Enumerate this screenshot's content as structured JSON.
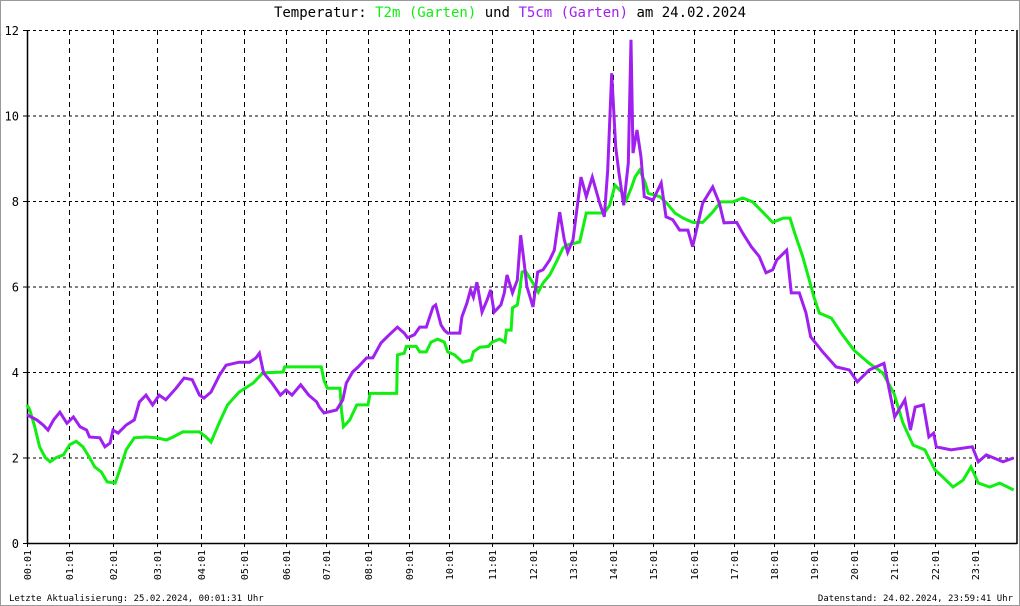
{
  "title": {
    "prefix": "Temperatur:",
    "series1": "T2m (Garten)",
    "middle": "und",
    "series2": "T5cm (Garten)",
    "suffix": "am 24.02.2024"
  },
  "footer": {
    "last_update": "Letzte Aktualisierung: 25.02.2024, 00:01:31 Uhr",
    "data_state": "Datenstand: 24.02.2024, 23:59:41 Uhr"
  },
  "colors": {
    "T2m": "#11ee11",
    "T5cm": "#a020f0",
    "grid": "#000000"
  },
  "chart_data": {
    "type": "line",
    "title": "Temperatur: T2m (Garten) und T5cm (Garten) am 24.02.2024",
    "xlabel": "",
    "ylabel": "",
    "ylim": [
      0,
      12
    ],
    "yticks": [
      "0",
      "2",
      "4",
      "6",
      "8",
      "10",
      "12"
    ],
    "xticks": [
      "00:01",
      "01:01",
      "02:01",
      "03:01",
      "04:01",
      "05:01",
      "06:01",
      "07:01",
      "08:01",
      "09:01",
      "10:01",
      "11:01",
      "12:01",
      "13:01",
      "14:01",
      "15:01",
      "16:01",
      "17:01",
      "18:01",
      "19:01",
      "20:01",
      "21:01",
      "22:01",
      "23:01"
    ],
    "grid": true,
    "series": [
      {
        "name": "T2m (Garten)",
        "color": "#11ee11",
        "points": [
          [
            "00:01",
            3.23
          ],
          [
            "00:05",
            3.11
          ],
          [
            "00:12",
            2.72
          ],
          [
            "00:19",
            2.25
          ],
          [
            "00:27",
            2.0
          ],
          [
            "00:34",
            1.9
          ],
          [
            "00:43",
            2.0
          ],
          [
            "00:53",
            2.06
          ],
          [
            "01:02",
            2.3
          ],
          [
            "01:11",
            2.38
          ],
          [
            "01:20",
            2.25
          ],
          [
            "01:29",
            2.0
          ],
          [
            "01:36",
            1.78
          ],
          [
            "01:45",
            1.66
          ],
          [
            "01:53",
            1.43
          ],
          [
            "02:04",
            1.4
          ],
          [
            "02:10",
            1.7
          ],
          [
            "02:19",
            2.18
          ],
          [
            "02:30",
            2.46
          ],
          [
            "02:46",
            2.48
          ],
          [
            "03:00",
            2.46
          ],
          [
            "03:14",
            2.41
          ],
          [
            "03:23",
            2.48
          ],
          [
            "03:36",
            2.6
          ],
          [
            "03:59",
            2.6
          ],
          [
            "04:08",
            2.48
          ],
          [
            "04:15",
            2.36
          ],
          [
            "04:27",
            2.83
          ],
          [
            "04:38",
            3.23
          ],
          [
            "04:54",
            3.53
          ],
          [
            "05:14",
            3.74
          ],
          [
            "05:28",
            3.98
          ],
          [
            "05:57",
            4.0
          ],
          [
            "05:59",
            4.12
          ],
          [
            "06:54",
            4.12
          ],
          [
            "06:58",
            3.8
          ],
          [
            "07:03",
            3.62
          ],
          [
            "07:21",
            3.62
          ],
          [
            "07:23",
            3.11
          ],
          [
            "07:26",
            2.72
          ],
          [
            "07:35",
            2.88
          ],
          [
            "07:45",
            3.23
          ],
          [
            "08:01",
            3.23
          ],
          [
            "08:04",
            3.5
          ],
          [
            "08:43",
            3.5
          ],
          [
            "08:44",
            4.4
          ],
          [
            "08:54",
            4.44
          ],
          [
            "08:57",
            4.6
          ],
          [
            "09:12",
            4.6
          ],
          [
            "09:17",
            4.47
          ],
          [
            "09:27",
            4.47
          ],
          [
            "09:34",
            4.7
          ],
          [
            "09:44",
            4.77
          ],
          [
            "09:54",
            4.7
          ],
          [
            "09:59",
            4.47
          ],
          [
            "10:09",
            4.4
          ],
          [
            "10:20",
            4.23
          ],
          [
            "10:32",
            4.28
          ],
          [
            "10:35",
            4.47
          ],
          [
            "10:44",
            4.58
          ],
          [
            "10:56",
            4.6
          ],
          [
            "11:01",
            4.7
          ],
          [
            "11:12",
            4.77
          ],
          [
            "11:20",
            4.7
          ],
          [
            "11:22",
            4.98
          ],
          [
            "11:29",
            4.98
          ],
          [
            "11:31",
            5.5
          ],
          [
            "11:38",
            5.57
          ],
          [
            "11:41",
            5.85
          ],
          [
            "11:45",
            6.34
          ],
          [
            "11:50",
            6.36
          ],
          [
            "12:01",
            6.08
          ],
          [
            "12:09",
            5.87
          ],
          [
            "12:16",
            6.08
          ],
          [
            "12:26",
            6.27
          ],
          [
            "12:36",
            6.57
          ],
          [
            "12:46",
            6.9
          ],
          [
            "12:52",
            6.97
          ],
          [
            "13:11",
            7.04
          ],
          [
            "13:21",
            7.72
          ],
          [
            "13:48",
            7.72
          ],
          [
            "13:56",
            7.9
          ],
          [
            "14:04",
            8.37
          ],
          [
            "14:14",
            8.21
          ],
          [
            "14:21",
            8.02
          ],
          [
            "14:29",
            8.33
          ],
          [
            "14:34",
            8.56
          ],
          [
            "14:41",
            8.72
          ],
          [
            "14:49",
            8.44
          ],
          [
            "14:54",
            8.18
          ],
          [
            "15:11",
            8.1
          ],
          [
            "15:21",
            7.95
          ],
          [
            "15:33",
            7.72
          ],
          [
            "15:45",
            7.6
          ],
          [
            "15:59",
            7.5
          ],
          [
            "16:14",
            7.5
          ],
          [
            "16:29",
            7.74
          ],
          [
            "16:41",
            7.98
          ],
          [
            "16:59",
            7.98
          ],
          [
            "17:14",
            8.07
          ],
          [
            "17:29",
            7.98
          ],
          [
            "17:44",
            7.74
          ],
          [
            "17:59",
            7.5
          ],
          [
            "18:15",
            7.6
          ],
          [
            "18:25",
            7.6
          ],
          [
            "18:32",
            7.25
          ],
          [
            "18:44",
            6.7
          ],
          [
            "18:54",
            6.15
          ],
          [
            "19:01",
            5.75
          ],
          [
            "19:09",
            5.38
          ],
          [
            "19:27",
            5.26
          ],
          [
            "19:42",
            4.91
          ],
          [
            "20:01",
            4.51
          ],
          [
            "20:24",
            4.2
          ],
          [
            "20:44",
            3.98
          ],
          [
            "21:01",
            3.5
          ],
          [
            "21:14",
            2.81
          ],
          [
            "21:29",
            2.29
          ],
          [
            "21:46",
            2.18
          ],
          [
            "22:01",
            1.71
          ],
          [
            "22:13",
            1.54
          ],
          [
            "22:28",
            1.31
          ],
          [
            "22:43",
            1.47
          ],
          [
            "22:55",
            1.78
          ],
          [
            "23:06",
            1.4
          ],
          [
            "23:23",
            1.31
          ],
          [
            "23:38",
            1.4
          ],
          [
            "23:59",
            1.24
          ]
        ]
      },
      {
        "name": "T5cm (Garten)",
        "color": "#a020f0",
        "points": [
          [
            "00:01",
            3.0
          ],
          [
            "00:15",
            2.88
          ],
          [
            "00:24",
            2.76
          ],
          [
            "00:31",
            2.64
          ],
          [
            "00:39",
            2.88
          ],
          [
            "00:48",
            3.06
          ],
          [
            "00:58",
            2.8
          ],
          [
            "01:07",
            2.95
          ],
          [
            "01:16",
            2.72
          ],
          [
            "01:25",
            2.64
          ],
          [
            "01:29",
            2.48
          ],
          [
            "01:43",
            2.46
          ],
          [
            "01:50",
            2.25
          ],
          [
            "01:57",
            2.34
          ],
          [
            "02:01",
            2.64
          ],
          [
            "02:08",
            2.57
          ],
          [
            "02:19",
            2.76
          ],
          [
            "02:30",
            2.88
          ],
          [
            "02:37",
            3.3
          ],
          [
            "02:46",
            3.46
          ],
          [
            "02:55",
            3.23
          ],
          [
            "03:04",
            3.46
          ],
          [
            "03:13",
            3.35
          ],
          [
            "03:27",
            3.62
          ],
          [
            "03:38",
            3.86
          ],
          [
            "03:49",
            3.82
          ],
          [
            "03:59",
            3.46
          ],
          [
            "04:05",
            3.39
          ],
          [
            "04:15",
            3.53
          ],
          [
            "04:27",
            3.93
          ],
          [
            "04:36",
            4.16
          ],
          [
            "04:54",
            4.23
          ],
          [
            "05:09",
            4.23
          ],
          [
            "05:18",
            4.33
          ],
          [
            "05:23",
            4.44
          ],
          [
            "05:29",
            3.98
          ],
          [
            "05:41",
            3.74
          ],
          [
            "05:53",
            3.46
          ],
          [
            "06:01",
            3.58
          ],
          [
            "06:10",
            3.46
          ],
          [
            "06:23",
            3.7
          ],
          [
            "06:35",
            3.46
          ],
          [
            "06:47",
            3.3
          ],
          [
            "06:51",
            3.18
          ],
          [
            "06:58",
            3.04
          ],
          [
            "07:16",
            3.11
          ],
          [
            "07:25",
            3.35
          ],
          [
            "07:30",
            3.74
          ],
          [
            "07:39",
            4.0
          ],
          [
            "07:47",
            4.12
          ],
          [
            "07:59",
            4.33
          ],
          [
            "08:08",
            4.33
          ],
          [
            "08:20",
            4.68
          ],
          [
            "08:32",
            4.87
          ],
          [
            "08:44",
            5.05
          ],
          [
            "08:54",
            4.91
          ],
          [
            "08:59",
            4.8
          ],
          [
            "09:09",
            4.87
          ],
          [
            "09:17",
            5.05
          ],
          [
            "09:27",
            5.05
          ],
          [
            "09:37",
            5.52
          ],
          [
            "09:41",
            5.57
          ],
          [
            "09:49",
            5.1
          ],
          [
            "09:54",
            4.98
          ],
          [
            "09:59",
            4.91
          ],
          [
            "10:16",
            4.91
          ],
          [
            "10:19",
            5.29
          ],
          [
            "10:26",
            5.61
          ],
          [
            "10:31",
            5.92
          ],
          [
            "10:35",
            5.75
          ],
          [
            "10:40",
            6.1
          ],
          [
            "10:47",
            5.4
          ],
          [
            "10:54",
            5.68
          ],
          [
            "10:59",
            5.92
          ],
          [
            "11:04",
            5.4
          ],
          [
            "11:14",
            5.57
          ],
          [
            "11:19",
            5.85
          ],
          [
            "11:23",
            6.27
          ],
          [
            "11:31",
            5.85
          ],
          [
            "11:38",
            6.15
          ],
          [
            "11:43",
            7.2
          ],
          [
            "11:47",
            6.7
          ],
          [
            "11:52",
            6.0
          ],
          [
            "12:01",
            5.52
          ],
          [
            "12:08",
            6.34
          ],
          [
            "12:16",
            6.39
          ],
          [
            "12:26",
            6.62
          ],
          [
            "12:33",
            6.85
          ],
          [
            "12:41",
            7.74
          ],
          [
            "12:48",
            7.09
          ],
          [
            "12:53",
            6.8
          ],
          [
            "13:01",
            7.09
          ],
          [
            "13:13",
            8.56
          ],
          [
            "13:21",
            8.1
          ],
          [
            "13:30",
            8.56
          ],
          [
            "13:41",
            7.95
          ],
          [
            "13:48",
            7.63
          ],
          [
            "13:53",
            8.72
          ],
          [
            "13:59",
            10.99
          ],
          [
            "14:05",
            9.26
          ],
          [
            "14:10",
            8.65
          ],
          [
            "14:17",
            7.9
          ],
          [
            "14:24",
            8.89
          ],
          [
            "14:28",
            11.77
          ],
          [
            "14:31",
            9.12
          ],
          [
            "14:37",
            9.66
          ],
          [
            "14:43",
            9.03
          ],
          [
            "14:48",
            8.1
          ],
          [
            "15:01",
            8.02
          ],
          [
            "15:13",
            8.42
          ],
          [
            "15:20",
            7.63
          ],
          [
            "15:30",
            7.56
          ],
          [
            "15:40",
            7.32
          ],
          [
            "15:52",
            7.32
          ],
          [
            "15:59",
            6.93
          ],
          [
            "16:14",
            7.95
          ],
          [
            "16:29",
            8.33
          ],
          [
            "16:39",
            7.95
          ],
          [
            "16:46",
            7.49
          ],
          [
            "17:05",
            7.5
          ],
          [
            "17:14",
            7.25
          ],
          [
            "17:27",
            6.93
          ],
          [
            "17:39",
            6.7
          ],
          [
            "17:49",
            6.32
          ],
          [
            "17:59",
            6.39
          ],
          [
            "18:05",
            6.62
          ],
          [
            "18:20",
            6.85
          ],
          [
            "18:27",
            5.85
          ],
          [
            "18:39",
            5.85
          ],
          [
            "18:49",
            5.38
          ],
          [
            "18:56",
            4.82
          ],
          [
            "19:14",
            4.47
          ],
          [
            "19:34",
            4.12
          ],
          [
            "19:54",
            4.05
          ],
          [
            "20:06",
            3.77
          ],
          [
            "20:24",
            4.05
          ],
          [
            "20:46",
            4.2
          ],
          [
            "20:54",
            3.58
          ],
          [
            "21:02",
            2.95
          ],
          [
            "21:17",
            3.35
          ],
          [
            "21:25",
            2.64
          ],
          [
            "21:32",
            3.18
          ],
          [
            "21:44",
            3.23
          ],
          [
            "21:52",
            2.48
          ],
          [
            "21:59",
            2.57
          ],
          [
            "22:03",
            2.25
          ],
          [
            "22:25",
            2.18
          ],
          [
            "22:57",
            2.25
          ],
          [
            "23:06",
            1.9
          ],
          [
            "23:18",
            2.06
          ],
          [
            "23:43",
            1.9
          ],
          [
            "23:59",
            1.99
          ]
        ]
      }
    ]
  }
}
